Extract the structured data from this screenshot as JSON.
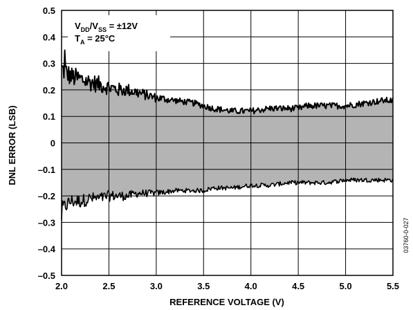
{
  "chart_data": {
    "type": "area",
    "xlabel": "REFERENCE VOLTAGE (V)",
    "ylabel": "DNL ERROR (LSB)",
    "xlim": [
      2.0,
      5.5
    ],
    "ylim": [
      -0.5,
      0.5
    ],
    "xticks": [
      "2.0",
      "2.5",
      "3.0",
      "3.5",
      "4.0",
      "4.5",
      "5.0",
      "5.5"
    ],
    "yticks": [
      "0.5",
      "0.4",
      "0.3",
      "0.2",
      "0.1",
      "0",
      "–0.1",
      "–0.2",
      "–0.3",
      "–0.4",
      "–0.5"
    ],
    "grid": true,
    "annotation": {
      "line1_main": "V",
      "line1_sub1": "DD",
      "line1_mid": "/V",
      "line1_sub2": "SS",
      "line1_tail": " = ±12V",
      "line2_main": "T",
      "line2_sub": "A",
      "line2_tail": " = 25°C"
    },
    "figure_code": "03760-0-027",
    "fill_color": "#b4b4b4",
    "series": [
      {
        "name": "",
        "x": [
          2.0,
          2.1,
          2.2,
          2.3,
          2.4,
          2.5,
          2.6,
          2.7,
          2.8,
          2.9,
          3.0,
          3.2,
          3.4,
          3.5,
          3.6,
          3.8,
          4.0,
          4.2,
          4.4,
          4.5,
          4.6,
          4.8,
          5.0,
          5.2,
          5.4,
          5.5
        ],
        "values": [
          0.28,
          0.25,
          0.24,
          0.23,
          0.22,
          0.21,
          0.2,
          0.2,
          0.19,
          0.18,
          0.17,
          0.16,
          0.15,
          0.14,
          0.13,
          0.12,
          0.12,
          0.13,
          0.13,
          0.13,
          0.14,
          0.14,
          0.14,
          0.15,
          0.16,
          0.16
        ]
      },
      {
        "name": "",
        "x": [
          2.0,
          2.1,
          2.2,
          2.3,
          2.4,
          2.5,
          2.6,
          2.7,
          2.8,
          2.9,
          3.0,
          3.2,
          3.4,
          3.5,
          3.6,
          3.8,
          4.0,
          4.2,
          4.4,
          4.5,
          4.6,
          4.8,
          5.0,
          5.2,
          5.4,
          5.5
        ],
        "values": [
          -0.25,
          -0.22,
          -0.22,
          -0.21,
          -0.21,
          -0.2,
          -0.2,
          -0.2,
          -0.19,
          -0.19,
          -0.19,
          -0.18,
          -0.18,
          -0.18,
          -0.17,
          -0.17,
          -0.16,
          -0.16,
          -0.15,
          -0.15,
          -0.15,
          -0.15,
          -0.14,
          -0.14,
          -0.14,
          -0.14
        ]
      }
    ]
  }
}
